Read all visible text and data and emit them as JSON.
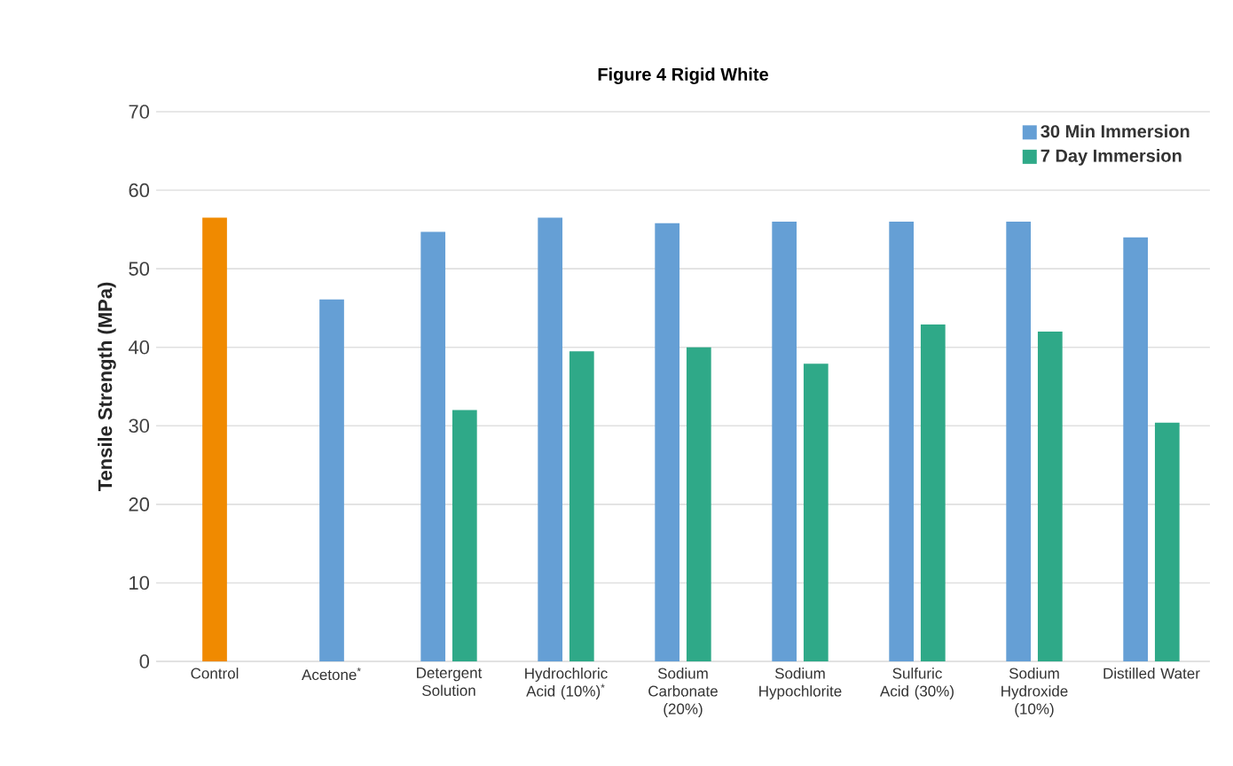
{
  "chart_data": {
    "type": "bar",
    "title": "Figure 4 Rigid White",
    "ylabel": "Tensile Strength (MPa)",
    "categories": [
      "Control",
      "Acetone$^{*}$",
      "Detergent Solution",
      "Hydrochloric Acid (10%)$^{*}$",
      "Sodium Carbonate (20%)",
      "Sodium Hypochlorite",
      "Sulfuric Acid (30%)",
      "Sodium Hydroxide (10%)",
      "Distilled Water"
    ],
    "series": [
      {
        "color": "#f08a00",
        "values": [
          56.5,
          null,
          null,
          null,
          null,
          null,
          null,
          null,
          null
        ]
      },
      {
        "name": "30 Min Immersion",
        "color": "#659fd5",
        "values": [
          null,
          46.1,
          54.7,
          56.5,
          55.8,
          56.0,
          56.0,
          56.0,
          54.0
        ]
      },
      {
        "name": "7 Day Immersion",
        "color": "#2fa988",
        "values": [
          null,
          null,
          32.0,
          39.5,
          40.0,
          37.9,
          42.9,
          42.0,
          30.4
        ]
      }
    ],
    "ylim": [
      0,
      70
    ],
    "yticks": [
      0,
      10,
      20,
      30,
      40,
      50,
      60,
      70
    ],
    "grid": "y",
    "legend": "top right"
  }
}
